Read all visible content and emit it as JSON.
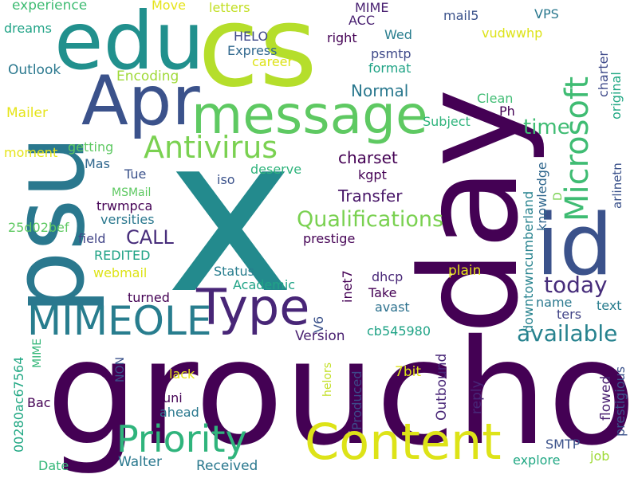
{
  "words": [
    {
      "id": "groucho",
      "text": "groucho",
      "color": "#440154"
    },
    {
      "id": "x",
      "text": "x",
      "color": "#238a8d"
    },
    {
      "id": "day",
      "text": "day",
      "color": "#440154"
    },
    {
      "id": "psu",
      "text": "psu",
      "color": "#2a788e"
    },
    {
      "id": "cs",
      "text": "cs",
      "color": "#b5de2b"
    },
    {
      "id": "edu",
      "text": "edu",
      "color": "#21908d"
    },
    {
      "id": "apr",
      "text": "Apr",
      "color": "#3b528b"
    },
    {
      "id": "message",
      "text": "message",
      "color": "#5ec962"
    },
    {
      "id": "id",
      "text": "id",
      "color": "#3b528b"
    },
    {
      "id": "content",
      "text": "Content",
      "color": "#dde318"
    },
    {
      "id": "priority",
      "text": "Priority",
      "color": "#2fb47c"
    },
    {
      "id": "type",
      "text": "Type",
      "color": "#482677"
    },
    {
      "id": "mimeole",
      "text": "MIMEOLE",
      "color": "#287d8e"
    },
    {
      "id": "antivirus",
      "text": "Antivirus",
      "color": "#7ad151"
    },
    {
      "id": "microsoft",
      "text": "Microsoft",
      "color": "#3fbc73"
    },
    {
      "id": "qualifications",
      "text": "Qualifications",
      "color": "#7ad151"
    },
    {
      "id": "available",
      "text": "available",
      "color": "#26828e"
    },
    {
      "id": "today",
      "text": "today",
      "color": "#472d7b"
    },
    {
      "id": "time",
      "text": "time",
      "color": "#3fbc73"
    },
    {
      "id": "call",
      "text": "CALL",
      "color": "#472d7b"
    },
    {
      "id": "transfer",
      "text": "Transfer",
      "color": "#481668"
    },
    {
      "id": "charset",
      "text": "charset",
      "color": "#440154"
    },
    {
      "id": "normal",
      "text": "Normal",
      "color": "#2a788e"
    },
    {
      "id": "experience",
      "text": "experience",
      "color": "#3fbc73"
    },
    {
      "id": "move",
      "text": "Move",
      "color": "#e5e419"
    },
    {
      "id": "letters",
      "text": "letters",
      "color": "#c2df23"
    },
    {
      "id": "mime-top",
      "text": "MIME",
      "color": "#481f70"
    },
    {
      "id": "acc",
      "text": "ACC",
      "color": "#481f70"
    },
    {
      "id": "mail5",
      "text": "mail5",
      "color": "#3b528b"
    },
    {
      "id": "vps",
      "text": "VPS",
      "color": "#2a788e"
    },
    {
      "id": "dreams",
      "text": "dreams",
      "color": "#20a386"
    },
    {
      "id": "helo",
      "text": "HELO",
      "color": "#3e4989"
    },
    {
      "id": "right",
      "text": "right",
      "color": "#440154"
    },
    {
      "id": "wed",
      "text": "Wed",
      "color": "#287d8e"
    },
    {
      "id": "vudwwhp",
      "text": "vudwwhp",
      "color": "#dde318"
    },
    {
      "id": "express",
      "text": "Express",
      "color": "#31688e"
    },
    {
      "id": "psmtp",
      "text": "psmtp",
      "color": "#3e4989"
    },
    {
      "id": "career",
      "text": "career",
      "color": "#dde318"
    },
    {
      "id": "format",
      "text": "format",
      "color": "#20a386"
    },
    {
      "id": "outlook",
      "text": "Outlook",
      "color": "#2a788e"
    },
    {
      "id": "encoding",
      "text": "Encoding",
      "color": "#a0da39"
    },
    {
      "id": "charter",
      "text": "charter",
      "color": "#3e4989"
    },
    {
      "id": "original",
      "text": "original",
      "color": "#22a884"
    },
    {
      "id": "mailer",
      "text": "Mailer",
      "color": "#e5e419"
    },
    {
      "id": "clean",
      "text": "Clean",
      "color": "#3fbc73"
    },
    {
      "id": "ph",
      "text": "Ph",
      "color": "#440154"
    },
    {
      "id": "subject",
      "text": "Subject",
      "color": "#2fb47c"
    },
    {
      "id": "moment",
      "text": "moment",
      "color": "#e5e419"
    },
    {
      "id": "getting",
      "text": "getting",
      "color": "#5ec962"
    },
    {
      "id": "mas",
      "text": "Mas",
      "color": "#31688e"
    },
    {
      "id": "deserve",
      "text": "deserve",
      "color": "#2fb47c"
    },
    {
      "id": "kgpt",
      "text": "kgpt",
      "color": "#440154"
    },
    {
      "id": "tue",
      "text": "Tue",
      "color": "#3b528b"
    },
    {
      "id": "iso",
      "text": "iso",
      "color": "#3b528b"
    },
    {
      "id": "mail",
      "text": "MSMail",
      "color": "#5ec962"
    },
    {
      "id": "trwmpca",
      "text": "trwmpca",
      "color": "#440154"
    },
    {
      "id": "versities",
      "text": "versities",
      "color": "#2a788e"
    },
    {
      "id": "hash1",
      "text": "25d02bef",
      "color": "#5ec962"
    },
    {
      "id": "field",
      "text": "field",
      "color": "#414487"
    },
    {
      "id": "credited",
      "text": "REDITED",
      "color": "#20a386"
    },
    {
      "id": "prestige",
      "text": "prestige",
      "color": "#440154"
    },
    {
      "id": "knowledge",
      "text": "knowledge",
      "color": "#31688e"
    },
    {
      "id": "downtown",
      "text": "downtowncumberland",
      "color": "#26828e"
    },
    {
      "id": "d",
      "text": "D",
      "color": "#7ad151"
    },
    {
      "id": "arlinet",
      "text": "arlinetn",
      "color": "#3b528b"
    },
    {
      "id": "status",
      "text": "Status",
      "color": "#287d8e"
    },
    {
      "id": "webmail",
      "text": "webmail",
      "color": "#dde318"
    },
    {
      "id": "plain",
      "text": "plain",
      "color": "#e5e419"
    },
    {
      "id": "academic",
      "text": "Academic",
      "color": "#20a386"
    },
    {
      "id": "dhcp",
      "text": "dhcp",
      "color": "#482677"
    },
    {
      "id": "inet7",
      "text": "inet7",
      "color": "#440154"
    },
    {
      "id": "turned",
      "text": "turned",
      "color": "#440154"
    },
    {
      "id": "take",
      "text": "Take",
      "color": "#440154"
    },
    {
      "id": "name",
      "text": "name",
      "color": "#2a788e"
    },
    {
      "id": "text",
      "text": "text",
      "color": "#287d8e"
    },
    {
      "id": "avast",
      "text": "avast",
      "color": "#2c718e"
    },
    {
      "id": "ters",
      "text": "ters",
      "color": "#414487"
    },
    {
      "id": "v6",
      "text": "V6",
      "color": "#3b528b"
    },
    {
      "id": "version",
      "text": "Version",
      "color": "#481f70"
    },
    {
      "id": "hash2",
      "text": "cb545980",
      "color": "#20a386"
    },
    {
      "id": "hash3",
      "text": "00280ac67564",
      "color": "#22a884"
    },
    {
      "id": "mime-left",
      "text": "MIME",
      "color": "#35b779"
    },
    {
      "id": "reply",
      "text": "reply",
      "color": "#482677"
    },
    {
      "id": "flowed",
      "text": "flowed",
      "color": "#481f70"
    },
    {
      "id": "prestigious",
      "text": "prestigious",
      "color": "#3b528b"
    },
    {
      "id": "non",
      "text": "NON",
      "color": "#3b528b"
    },
    {
      "id": "lack",
      "text": "lack",
      "color": "#e5e419"
    },
    {
      "id": "produced",
      "text": "Produced",
      "color": "#3e4989"
    },
    {
      "id": "helors",
      "text": "helors",
      "color": "#c2df23"
    },
    {
      "id": "bit7",
      "text": "7bit",
      "color": "#dde318"
    },
    {
      "id": "outbound",
      "text": "Outbound",
      "color": "#482677"
    },
    {
      "id": "bac",
      "text": "Bac",
      "color": "#440154"
    },
    {
      "id": "uni",
      "text": "uni",
      "color": "#440154"
    },
    {
      "id": "ahead",
      "text": "ahead",
      "color": "#2a788e"
    },
    {
      "id": "smtp",
      "text": "SMTP",
      "color": "#3b528b"
    },
    {
      "id": "date",
      "text": "Date",
      "color": "#35b779"
    },
    {
      "id": "walter",
      "text": "Walter",
      "color": "#2a788e"
    },
    {
      "id": "received",
      "text": "Received",
      "color": "#2a788e"
    },
    {
      "id": "explore",
      "text": "explore",
      "color": "#22a884"
    },
    {
      "id": "job",
      "text": "job",
      "color": "#a0da39"
    }
  ]
}
